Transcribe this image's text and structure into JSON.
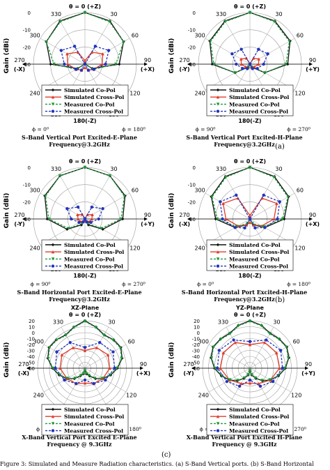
{
  "figure_caption": "Figure 3: Simulated and Measure Radiation characteristics. (a) S-Band Vertical ports. (b) S-Band Horizontal",
  "row_labels": [
    "(a)",
    "(b)",
    "(c)"
  ],
  "legend_entries": [
    "Simulated Co-Pol",
    "Simulated Cross-Pol",
    "Measured Co-Pol",
    "Measured Cross-Pol"
  ],
  "colors": {
    "sim_co": "#111111",
    "sim_cross": "#e03c28",
    "meas_co": "#1f9a3a",
    "meas_cross": "#2233bb",
    "grid": "#9a9a9a"
  },
  "chart_data": [
    {
      "type": "polar-line",
      "ylabel": "Gain (dBi)",
      "rlim": [
        -30,
        0
      ],
      "rticks": [
        0,
        -10,
        -20,
        -30
      ],
      "angle_labels": [
        "θ = 0  (+Z)",
        "330",
        "30",
        "300",
        "60",
        "270",
        "90",
        "240",
        "120",
        "210",
        "150",
        "180(-Z)"
      ],
      "side_labels": [
        "(-X)",
        "(+X)"
      ],
      "phi_labels": [
        "ϕ = 0⁰",
        "ϕ = 180⁰"
      ],
      "title_lines": [
        "S-Band Vertical Port Excited-E-Plane",
        "Frequency@3.2GHz"
      ],
      "series": [
        {
          "name": "Simulated Co-Pol",
          "theta": [
            0,
            30,
            60,
            90,
            120,
            150,
            180,
            210,
            240,
            270,
            300,
            330,
            360
          ],
          "r": [
            0,
            -1,
            -4,
            -10,
            -25,
            -30,
            -30,
            -30,
            -25,
            -10,
            -4,
            -1,
            0
          ]
        },
        {
          "name": "Simulated Cross-Pol",
          "theta": [
            0,
            30,
            60,
            90,
            120,
            150,
            180,
            210,
            240,
            270,
            300,
            330,
            360
          ],
          "r": [
            -28,
            -22,
            -18,
            -20,
            -24,
            -26,
            -28,
            -26,
            -24,
            -20,
            -18,
            -22,
            -28
          ]
        },
        {
          "name": "Measured Co-Pol",
          "theta": [
            0,
            30,
            60,
            90,
            120,
            150,
            180,
            210,
            240,
            270,
            300,
            330,
            360
          ],
          "r": [
            0,
            -1.5,
            -4,
            -12,
            -24,
            -30,
            -30,
            -30,
            -24,
            -12,
            -4,
            -1.5,
            0
          ]
        },
        {
          "name": "Measured Cross-Pol",
          "theta": [
            0,
            30,
            60,
            90,
            120,
            150,
            180,
            210,
            240,
            270,
            300,
            330,
            360
          ],
          "r": [
            -30,
            -18,
            -14,
            -18,
            -24,
            -26,
            -30,
            -26,
            -24,
            -18,
            -14,
            -18,
            -30
          ]
        }
      ]
    },
    {
      "type": "polar-line",
      "ylabel": "Gain (dBi)",
      "rlim": [
        -30,
        0
      ],
      "rticks": [
        0,
        -10,
        -20,
        -30
      ],
      "angle_labels": [
        "θ = 0  (+Z)",
        "330",
        "30",
        "300",
        "60",
        "270",
        "90",
        "240",
        "120",
        "210",
        "150",
        "180(-Z)"
      ],
      "side_labels": [
        "(-Y)",
        "(+Y)"
      ],
      "phi_labels": [
        "ϕ = 90⁰",
        "ϕ = 270⁰"
      ],
      "title_lines": [
        "S-Band Vertical Port Excited-H-Plane",
        "Frequency@3.2GHz"
      ],
      "series": [
        {
          "name": "Simulated Co-Pol",
          "theta": [
            0,
            30,
            60,
            90,
            120,
            150,
            180,
            210,
            240,
            270,
            300,
            330,
            360
          ],
          "r": [
            0,
            -1,
            -3,
            -8,
            -20,
            -28,
            -30,
            -28,
            -20,
            -8,
            -3,
            -1,
            0
          ]
        },
        {
          "name": "Simulated Cross-Pol",
          "theta": [
            0,
            30,
            60,
            90,
            120,
            150,
            180,
            210,
            240,
            270,
            300,
            330,
            360
          ],
          "r": [
            -30,
            -26,
            -24,
            -25,
            -27,
            -28,
            -30,
            -28,
            -27,
            -25,
            -24,
            -26,
            -30
          ]
        },
        {
          "name": "Measured Co-Pol",
          "theta": [
            0,
            30,
            60,
            90,
            120,
            150,
            180,
            210,
            240,
            270,
            300,
            330,
            360
          ],
          "r": [
            0,
            -1.5,
            -3.5,
            -9,
            -20,
            -28,
            -30,
            -28,
            -20,
            -9,
            -3.5,
            -1.5,
            0
          ]
        },
        {
          "name": "Measured Cross-Pol",
          "theta": [
            0,
            30,
            60,
            90,
            120,
            150,
            180,
            210,
            240,
            270,
            300,
            330,
            360
          ],
          "r": [
            -30,
            -20,
            -18,
            -22,
            -25,
            -27,
            -30,
            -27,
            -25,
            -22,
            -18,
            -20,
            -30
          ]
        }
      ]
    },
    {
      "type": "polar-line",
      "ylabel": "Gain (dBi)",
      "rlim": [
        -30,
        0
      ],
      "rticks": [
        0,
        -10,
        -20,
        -30
      ],
      "angle_labels": [
        "θ = 0  (+Z)",
        "330",
        "30",
        "300",
        "60",
        "270",
        "90",
        "240",
        "120",
        "210",
        "150",
        "180(-Z)"
      ],
      "side_labels": [
        "(-Y)",
        "(+Y)"
      ],
      "phi_labels": [
        "ϕ = 90⁰",
        "ϕ = 270⁰"
      ],
      "title_lines": [
        "S-Band Horizontal Port Excited-E-Plane",
        "Frequency@3.2GHz"
      ],
      "series": [
        {
          "name": "Simulated Co-Pol",
          "theta": [
            0,
            30,
            60,
            90,
            120,
            150,
            180,
            210,
            240,
            270,
            300,
            330,
            360
          ],
          "r": [
            0,
            -1,
            -3,
            -8,
            -18,
            -26,
            -30,
            -26,
            -18,
            -8,
            -3,
            -1,
            0
          ]
        },
        {
          "name": "Simulated Cross-Pol",
          "theta": [
            0,
            30,
            60,
            90,
            120,
            150,
            180,
            210,
            240,
            270,
            300,
            330,
            360
          ],
          "r": [
            -30,
            -27,
            -25,
            -26,
            -27,
            -29,
            -30,
            -29,
            -27,
            -26,
            -25,
            -27,
            -30
          ]
        },
        {
          "name": "Measured Co-Pol",
          "theta": [
            0,
            30,
            60,
            90,
            120,
            150,
            180,
            210,
            240,
            270,
            300,
            330,
            360
          ],
          "r": [
            0,
            -1,
            -3.5,
            -9,
            -19,
            -27,
            -30,
            -27,
            -19,
            -9,
            -3.5,
            -1,
            0
          ]
        },
        {
          "name": "Measured Cross-Pol",
          "theta": [
            0,
            30,
            60,
            90,
            120,
            150,
            180,
            210,
            240,
            270,
            300,
            330,
            360
          ],
          "r": [
            -30,
            -22,
            -18,
            -22,
            -26,
            -28,
            -30,
            -28,
            -26,
            -22,
            -18,
            -22,
            -30
          ]
        }
      ]
    },
    {
      "type": "polar-line",
      "ylabel": "Gain (dBi)",
      "rlim": [
        -30,
        0
      ],
      "rticks": [
        0,
        -10,
        -20,
        -30
      ],
      "angle_labels": [
        "θ = 0  (+Z)",
        "330",
        "30",
        "300",
        "60",
        "270",
        "90",
        "240",
        "120",
        "210",
        "150",
        "180(-Z)"
      ],
      "side_labels": [
        "(-X)",
        "(+X)"
      ],
      "phi_labels": [
        "ϕ = 0⁰",
        "ϕ = 180⁰"
      ],
      "title_lines": [
        "S-Band Horizontal Port Excited-H-Plane",
        "Frequency@3.2GHz"
      ],
      "series": [
        {
          "name": "Simulated Co-Pol",
          "theta": [
            0,
            30,
            60,
            90,
            120,
            150,
            180,
            210,
            240,
            270,
            300,
            330,
            360
          ],
          "r": [
            0,
            -1.5,
            -4,
            -10,
            -20,
            -26,
            -30,
            -26,
            -20,
            -10,
            -4,
            -1.5,
            0
          ]
        },
        {
          "name": "Simulated Cross-Pol",
          "theta": [
            0,
            30,
            60,
            90,
            120,
            150,
            180,
            210,
            240,
            270,
            300,
            330,
            360
          ],
          "r": [
            -28,
            -16,
            -12,
            -16,
            -22,
            -26,
            -28,
            -26,
            -22,
            -16,
            -12,
            -16,
            -28
          ]
        },
        {
          "name": "Measured Co-Pol",
          "theta": [
            0,
            30,
            60,
            90,
            120,
            150,
            180,
            210,
            240,
            270,
            300,
            330,
            360
          ],
          "r": [
            0,
            -2,
            -4.5,
            -11,
            -21,
            -27,
            -30,
            -27,
            -21,
            -11,
            -4.5,
            -2,
            0
          ]
        },
        {
          "name": "Measured Cross-Pol",
          "theta": [
            0,
            30,
            60,
            90,
            120,
            150,
            180,
            210,
            240,
            270,
            300,
            330,
            360
          ],
          "r": [
            -30,
            -14,
            -10,
            -14,
            -20,
            -24,
            -30,
            -24,
            -20,
            -14,
            -10,
            -14,
            -30
          ]
        }
      ]
    },
    {
      "type": "polar-line",
      "ylabel": "Gain (dBi)",
      "rlim": [
        -60,
        20
      ],
      "rticks": [
        20,
        10,
        0,
        -10,
        -20,
        -30,
        -40,
        -50,
        -60
      ],
      "angle_labels": [
        "θ = 0  (+Z)",
        "330",
        "30",
        "300",
        "60",
        "270",
        "90",
        "240",
        "120",
        "210",
        "150",
        "180(-Z)"
      ],
      "side_labels": [
        "(-X)",
        "(+X)"
      ],
      "phi_labels": [
        "ϕ = 0⁰",
        "ϕ = 180⁰"
      ],
      "top_title": "XZ-Plane",
      "title_lines": [
        "X-Band Vertical Port Excited E-Plane",
        "Frequency @ 9.3GHz"
      ],
      "series": [
        {
          "name": "Simulated Co-Pol",
          "theta": [
            0,
            15,
            30,
            45,
            60,
            75,
            90,
            105,
            120,
            135,
            150,
            165,
            180,
            195,
            210,
            225,
            240,
            255,
            270,
            285,
            300,
            315,
            330,
            345,
            360
          ],
          "r": [
            20,
            12,
            5,
            8,
            10,
            5,
            -5,
            -15,
            -25,
            -35,
            -45,
            -50,
            -55,
            -50,
            -45,
            -35,
            -25,
            -15,
            -5,
            5,
            10,
            8,
            5,
            12,
            20
          ]
        },
        {
          "name": "Simulated Cross-Pol",
          "theta": [
            0,
            30,
            60,
            90,
            120,
            150,
            180,
            210,
            240,
            270,
            300,
            330,
            360
          ],
          "r": [
            -30,
            -20,
            -15,
            -18,
            -25,
            -30,
            -35,
            -30,
            -25,
            -18,
            -15,
            -20,
            -30
          ]
        },
        {
          "name": "Measured Co-Pol",
          "theta": [
            0,
            15,
            30,
            45,
            60,
            75,
            90,
            105,
            120,
            135,
            150,
            165,
            180,
            195,
            210,
            225,
            240,
            255,
            270,
            285,
            300,
            315,
            330,
            345,
            360
          ],
          "r": [
            19,
            11,
            4,
            7,
            9,
            4,
            -6,
            -16,
            -26,
            -36,
            -46,
            -51,
            -56,
            -51,
            -46,
            -36,
            -26,
            -16,
            -6,
            4,
            9,
            7,
            4,
            11,
            19
          ]
        },
        {
          "name": "Measured Cross-Pol",
          "theta": [
            0,
            30,
            60,
            90,
            120,
            150,
            180,
            210,
            240,
            270,
            300,
            330,
            360
          ],
          "r": [
            -25,
            -10,
            -5,
            -10,
            -20,
            -30,
            -40,
            -30,
            -20,
            -10,
            -5,
            -10,
            -25
          ]
        }
      ]
    },
    {
      "type": "polar-line",
      "ylabel": "Gain (dBi)",
      "rlim": [
        -60,
        20
      ],
      "rticks": [
        20,
        10,
        0,
        -10,
        -20,
        -30,
        -40,
        -50,
        -60
      ],
      "angle_labels": [
        "θ = 0  (+Z)",
        "330",
        "30",
        "300",
        "60",
        "270",
        "90",
        "240",
        "120",
        "210",
        "150",
        "180(-Z)"
      ],
      "side_labels": [
        "(-Y)",
        "(+Y)"
      ],
      "phi_labels": [
        "ϕ = 90⁰",
        "ϕ = 270⁰"
      ],
      "top_title": "YZ-Plane",
      "title_lines": [
        "X-Band Vertical Port Excited H-Plane",
        "Frequency @ 9.3GHz"
      ],
      "series": [
        {
          "name": "Simulated Co-Pol",
          "theta": [
            0,
            15,
            30,
            45,
            60,
            75,
            90,
            105,
            120,
            135,
            150,
            165,
            180,
            195,
            210,
            225,
            240,
            255,
            270,
            285,
            300,
            315,
            330,
            345,
            360
          ],
          "r": [
            20,
            15,
            8,
            10,
            12,
            8,
            0,
            -10,
            -20,
            -30,
            -40,
            -48,
            -55,
            -48,
            -40,
            -30,
            -20,
            -10,
            0,
            8,
            12,
            10,
            8,
            15,
            20
          ]
        },
        {
          "name": "Simulated Cross-Pol",
          "theta": [
            0,
            30,
            60,
            90,
            120,
            150,
            180,
            210,
            240,
            270,
            300,
            330,
            360
          ],
          "r": [
            -20,
            -10,
            -8,
            -10,
            -20,
            -30,
            -35,
            -30,
            -20,
            -10,
            -8,
            -10,
            -20
          ]
        },
        {
          "name": "Measured Co-Pol",
          "theta": [
            0,
            15,
            30,
            45,
            60,
            75,
            90,
            105,
            120,
            135,
            150,
            165,
            180,
            195,
            210,
            225,
            240,
            255,
            270,
            285,
            300,
            315,
            330,
            345,
            360
          ],
          "r": [
            19,
            14,
            7,
            9,
            11,
            7,
            -1,
            -11,
            -21,
            -31,
            -41,
            -49,
            -56,
            -49,
            -41,
            -31,
            -21,
            -11,
            -1,
            7,
            11,
            9,
            7,
            14,
            19
          ]
        },
        {
          "name": "Measured Cross-Pol",
          "theta": [
            0,
            30,
            60,
            90,
            120,
            150,
            180,
            210,
            240,
            270,
            300,
            330,
            360
          ],
          "r": [
            -15,
            -5,
            0,
            -5,
            -15,
            -25,
            -40,
            -25,
            -15,
            -5,
            0,
            -5,
            -15
          ]
        }
      ]
    }
  ]
}
